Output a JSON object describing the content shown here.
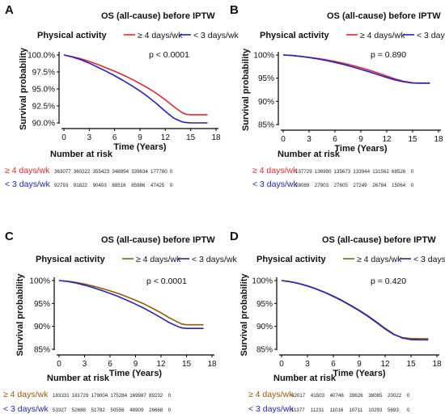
{
  "chart_data": [
    {
      "panel_label": "A",
      "type": "line",
      "title": "OS (all-cause) before IPTW",
      "legend_title": "Physical activity",
      "legend_placement": "top",
      "xlabel": "Time (Years)",
      "ylabel": "Survival probability",
      "xlim": [
        0,
        18
      ],
      "ylim": [
        0.9,
        1.0
      ],
      "xticks": [
        "0",
        "3",
        "6",
        "9",
        "12",
        "15",
        "18"
      ],
      "yticks": [
        {
          "value": 1.0,
          "label": "100.0%"
        },
        {
          "value": 0.975,
          "label": "97.5%"
        },
        {
          "value": 0.95,
          "label": "95.0%"
        },
        {
          "value": 0.925,
          "label": "92.5%"
        },
        {
          "value": 0.9,
          "label": "90.0%"
        }
      ],
      "pvalue": "p < 0.0001",
      "risk_title": "Number at risk",
      "series": [
        {
          "name": "≥ 4 days/wk",
          "color": "#e8262b",
          "x": [
            0,
            1,
            2,
            3,
            4,
            5,
            6,
            7,
            8,
            9,
            10,
            11,
            12,
            13,
            14,
            14.5,
            15,
            16,
            17
          ],
          "y": [
            1.0,
            0.9975,
            0.9945,
            0.9905,
            0.986,
            0.981,
            0.976,
            0.9705,
            0.9645,
            0.958,
            0.951,
            0.943,
            0.934,
            0.924,
            0.915,
            0.9125,
            0.912,
            0.912,
            0.912
          ],
          "risk": [
            "363077",
            "360222",
            "355423",
            "348854",
            "339634",
            "177780",
            "0"
          ]
        },
        {
          "name": "< 3 days/wk",
          "color": "#2222c8",
          "x": [
            0,
            1,
            2,
            3,
            4,
            5,
            6,
            7,
            8,
            9,
            10,
            11,
            12,
            13,
            14,
            14.5,
            15,
            16,
            17
          ],
          "y": [
            1.0,
            0.997,
            0.993,
            0.988,
            0.982,
            0.976,
            0.9695,
            0.9625,
            0.955,
            0.947,
            0.938,
            0.928,
            0.917,
            0.907,
            0.9015,
            0.9005,
            0.9,
            0.9,
            0.9
          ],
          "risk": [
            "92793",
            "91822",
            "90403",
            "88516",
            "85986",
            "47425",
            "0"
          ]
        }
      ]
    },
    {
      "panel_label": "B",
      "type": "line",
      "title": "OS (all-cause) before IPTW",
      "legend_title": "Physical activity",
      "legend_placement": "top",
      "xlabel": "Time (Years)",
      "ylabel": "Survival probability",
      "xlim": [
        0,
        18
      ],
      "ylim": [
        0.85,
        1.0
      ],
      "xticks": [
        "0",
        "3",
        "6",
        "9",
        "12",
        "15",
        "18"
      ],
      "yticks": [
        {
          "value": 1.0,
          "label": "100%"
        },
        {
          "value": 0.95,
          "label": "95%"
        },
        {
          "value": 0.9,
          "label": "90%"
        },
        {
          "value": 0.85,
          "label": "85%"
        }
      ],
      "pvalue": "p = 0.890",
      "risk_title": "Number at risk",
      "series": [
        {
          "name": "≥ 4 days/wk",
          "color": "#e8262b",
          "x": [
            0,
            1,
            2,
            3,
            4,
            5,
            6,
            7,
            8,
            9,
            10,
            11,
            12,
            13,
            14,
            15,
            16,
            17
          ],
          "y": [
            1.0,
            0.999,
            0.997,
            0.995,
            0.9925,
            0.9895,
            0.986,
            0.982,
            0.9775,
            0.9725,
            0.967,
            0.961,
            0.9545,
            0.948,
            0.943,
            0.94,
            0.9395,
            0.9395
          ],
          "risk": [
            "137729",
            "136990",
            "135673",
            "133944",
            "131562",
            "68526",
            "0"
          ]
        },
        {
          "name": "< 3 days/wk",
          "color": "#2222c8",
          "x": [
            0,
            1,
            2,
            3,
            4,
            5,
            6,
            7,
            8,
            9,
            10,
            11,
            12,
            13,
            14,
            15,
            16,
            17
          ],
          "y": [
            1.0,
            0.999,
            0.997,
            0.9945,
            0.9915,
            0.988,
            0.984,
            0.9795,
            0.9745,
            0.969,
            0.9635,
            0.9575,
            0.9515,
            0.946,
            0.942,
            0.9395,
            0.939,
            0.939
          ],
          "risk": [
            "28089",
            "27903",
            "27605",
            "27249",
            "26784",
            "15064",
            "0"
          ]
        }
      ]
    },
    {
      "panel_label": "C",
      "type": "line",
      "title": "OS (all-cause) before IPTW",
      "legend_title": "Physical activity",
      "legend_placement": "top",
      "xlabel": "Time (Years)",
      "ylabel": "Survival probability",
      "xlim": [
        0,
        18
      ],
      "ylim": [
        0.85,
        1.0
      ],
      "xticks": [
        "0",
        "3",
        "6",
        "9",
        "12",
        "15",
        "18"
      ],
      "yticks": [
        {
          "value": 1.0,
          "label": "100%"
        },
        {
          "value": 0.95,
          "label": "95%"
        },
        {
          "value": 0.9,
          "label": "90%"
        },
        {
          "value": 0.85,
          "label": "85%"
        }
      ],
      "pvalue": "p < 0.0001",
      "risk_title": "Number at risk",
      "series": [
        {
          "name": "≥ 4 days/wk",
          "color": "#9a5a00",
          "x": [
            0,
            1,
            2,
            3,
            4,
            5,
            6,
            7,
            8,
            9,
            10,
            11,
            12,
            13,
            14,
            14.5,
            15,
            16,
            17
          ],
          "y": [
            1.0,
            0.9985,
            0.996,
            0.9925,
            0.988,
            0.983,
            0.9775,
            0.9715,
            0.9645,
            0.957,
            0.949,
            0.9395,
            0.9295,
            0.9185,
            0.909,
            0.905,
            0.9035,
            0.9035,
            0.9035
          ],
          "risk": [
            "183331",
            "181729",
            "179004",
            "175284",
            "169987",
            "89232",
            "0"
          ]
        },
        {
          "name": "< 3 days/wk",
          "color": "#2222c8",
          "x": [
            0,
            1,
            2,
            3,
            4,
            5,
            6,
            7,
            8,
            9,
            10,
            11,
            12,
            13,
            14,
            14.5,
            15,
            16,
            17
          ],
          "y": [
            1.0,
            0.998,
            0.9945,
            0.99,
            0.9845,
            0.9785,
            0.972,
            0.965,
            0.957,
            0.9485,
            0.9395,
            0.9295,
            0.919,
            0.908,
            0.8995,
            0.8965,
            0.8955,
            0.8955,
            0.8955
          ],
          "risk": [
            "53327",
            "52688",
            "51782",
            "50556",
            "48909",
            "26668",
            "0"
          ]
        }
      ]
    },
    {
      "panel_label": "D",
      "type": "line",
      "title": "OS (all-cause) before IPTW",
      "legend_title": "Physical activity",
      "legend_placement": "top",
      "xlabel": "Time (Years)",
      "ylabel": "Survival probability",
      "xlim": [
        0,
        18
      ],
      "ylim": [
        0.85,
        1.0
      ],
      "xticks": [
        "0",
        "3",
        "6",
        "9",
        "12",
        "15",
        "18"
      ],
      "yticks": [
        {
          "value": 1.0,
          "label": "100%"
        },
        {
          "value": 0.95,
          "label": "95%"
        },
        {
          "value": 0.9,
          "label": "90%"
        },
        {
          "value": 0.85,
          "label": "85%"
        }
      ],
      "pvalue": "p = 0.420",
      "risk_title": "Number at risk",
      "series": [
        {
          "name": "≥ 4 days/wk",
          "color": "#9a5a00",
          "x": [
            0,
            1,
            2,
            3,
            4,
            5,
            6,
            7,
            8,
            9,
            10,
            11,
            12,
            13,
            14,
            15,
            16,
            17
          ],
          "y": [
            1.0,
            0.9975,
            0.9935,
            0.988,
            0.9815,
            0.974,
            0.965,
            0.9555,
            0.945,
            0.934,
            0.9215,
            0.908,
            0.894,
            0.882,
            0.8755,
            0.8735,
            0.873,
            0.873
          ],
          "risk": [
            "42017",
            "41503",
            "40746",
            "39626",
            "38085",
            "20022",
            "0"
          ]
        },
        {
          "name": "< 3 days/wk",
          "color": "#2222c8",
          "x": [
            0,
            1,
            2,
            3,
            4,
            5,
            6,
            7,
            8,
            9,
            10,
            11,
            12,
            13,
            14,
            15,
            16,
            17
          ],
          "y": [
            1.0,
            0.9975,
            0.9935,
            0.9885,
            0.982,
            0.9745,
            0.966,
            0.9565,
            0.946,
            0.935,
            0.923,
            0.9095,
            0.8955,
            0.883,
            0.8745,
            0.871,
            0.8705,
            0.8705
          ],
          "risk": [
            "11377",
            "11231",
            "11016",
            "10711",
            "10293",
            "5693",
            "0"
          ]
        }
      ]
    }
  ]
}
